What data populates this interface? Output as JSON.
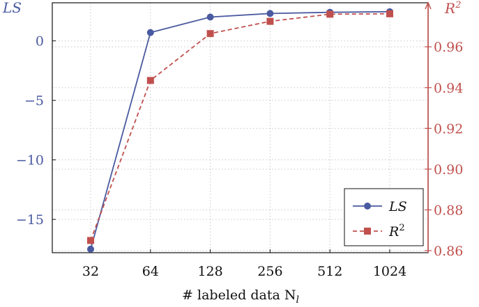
{
  "chart_data": {
    "type": "line",
    "categories": [
      "32",
      "64",
      "128",
      "256",
      "512",
      "1024"
    ],
    "xlabel": "# labeled data N",
    "xlabel_subscript": "l",
    "grid": true,
    "legend_placement": "bottom-right",
    "left_axis": {
      "title": "LS",
      "ylim": [
        -17.8,
        3.2
      ],
      "ticks": [
        0,
        -5,
        -10,
        -15
      ],
      "tick_labels": [
        "0",
        "−5",
        "−10",
        "−15"
      ],
      "color": "#4a5aa0"
    },
    "right_axis": {
      "title": "R",
      "title_superscript": "2",
      "ylim": [
        0.859,
        0.9816
      ],
      "ticks": [
        0.96,
        0.94,
        0.92,
        0.9,
        0.88,
        0.86
      ],
      "tick_labels": [
        "0.96",
        "0.94",
        "0.92",
        "0.90",
        "0.88",
        "0.86"
      ],
      "color": "#c0504d"
    },
    "series": [
      {
        "name": "LS",
        "axis": "left",
        "marker": "circle",
        "style": "solid",
        "color": "#4a5aa0",
        "values": [
          -17.5,
          0.7,
          2.0,
          2.3,
          2.4,
          2.45
        ]
      },
      {
        "name": "R",
        "name_superscript": "2",
        "axis": "right",
        "marker": "square",
        "style": "dashed",
        "color": "#c0504d",
        "values": [
          0.865,
          0.9435,
          0.9665,
          0.9725,
          0.976,
          0.9762
        ]
      }
    ]
  }
}
